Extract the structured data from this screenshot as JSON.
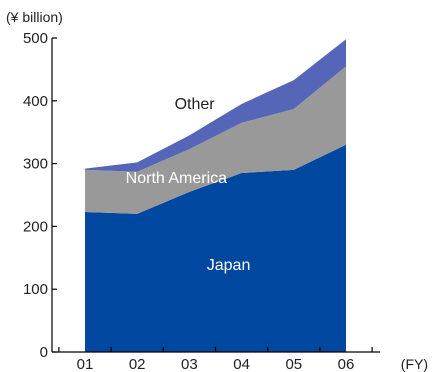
{
  "chart_data": {
    "type": "area",
    "stacked": true,
    "y_unit_label": "(¥ billion)",
    "x_unit_label": "(FY)",
    "categories": [
      "01",
      "02",
      "03",
      "04",
      "05",
      "06"
    ],
    "ylim": [
      0,
      500
    ],
    "yticks": [
      0,
      100,
      200,
      300,
      400,
      500
    ],
    "grid": false,
    "series": [
      {
        "name": "Japan",
        "color": "#0047A0",
        "label_color": "#FFFFFF",
        "values": [
          223,
          220,
          255,
          285,
          290,
          330
        ]
      },
      {
        "name": "North America",
        "color": "#999999",
        "label_color": "#FFFFFF",
        "values": [
          67,
          67,
          68,
          80,
          97,
          125
        ]
      },
      {
        "name": "Other",
        "color": "#5566B8",
        "label_color": "#222222",
        "values": [
          2,
          15,
          22,
          30,
          46,
          43
        ]
      }
    ]
  }
}
